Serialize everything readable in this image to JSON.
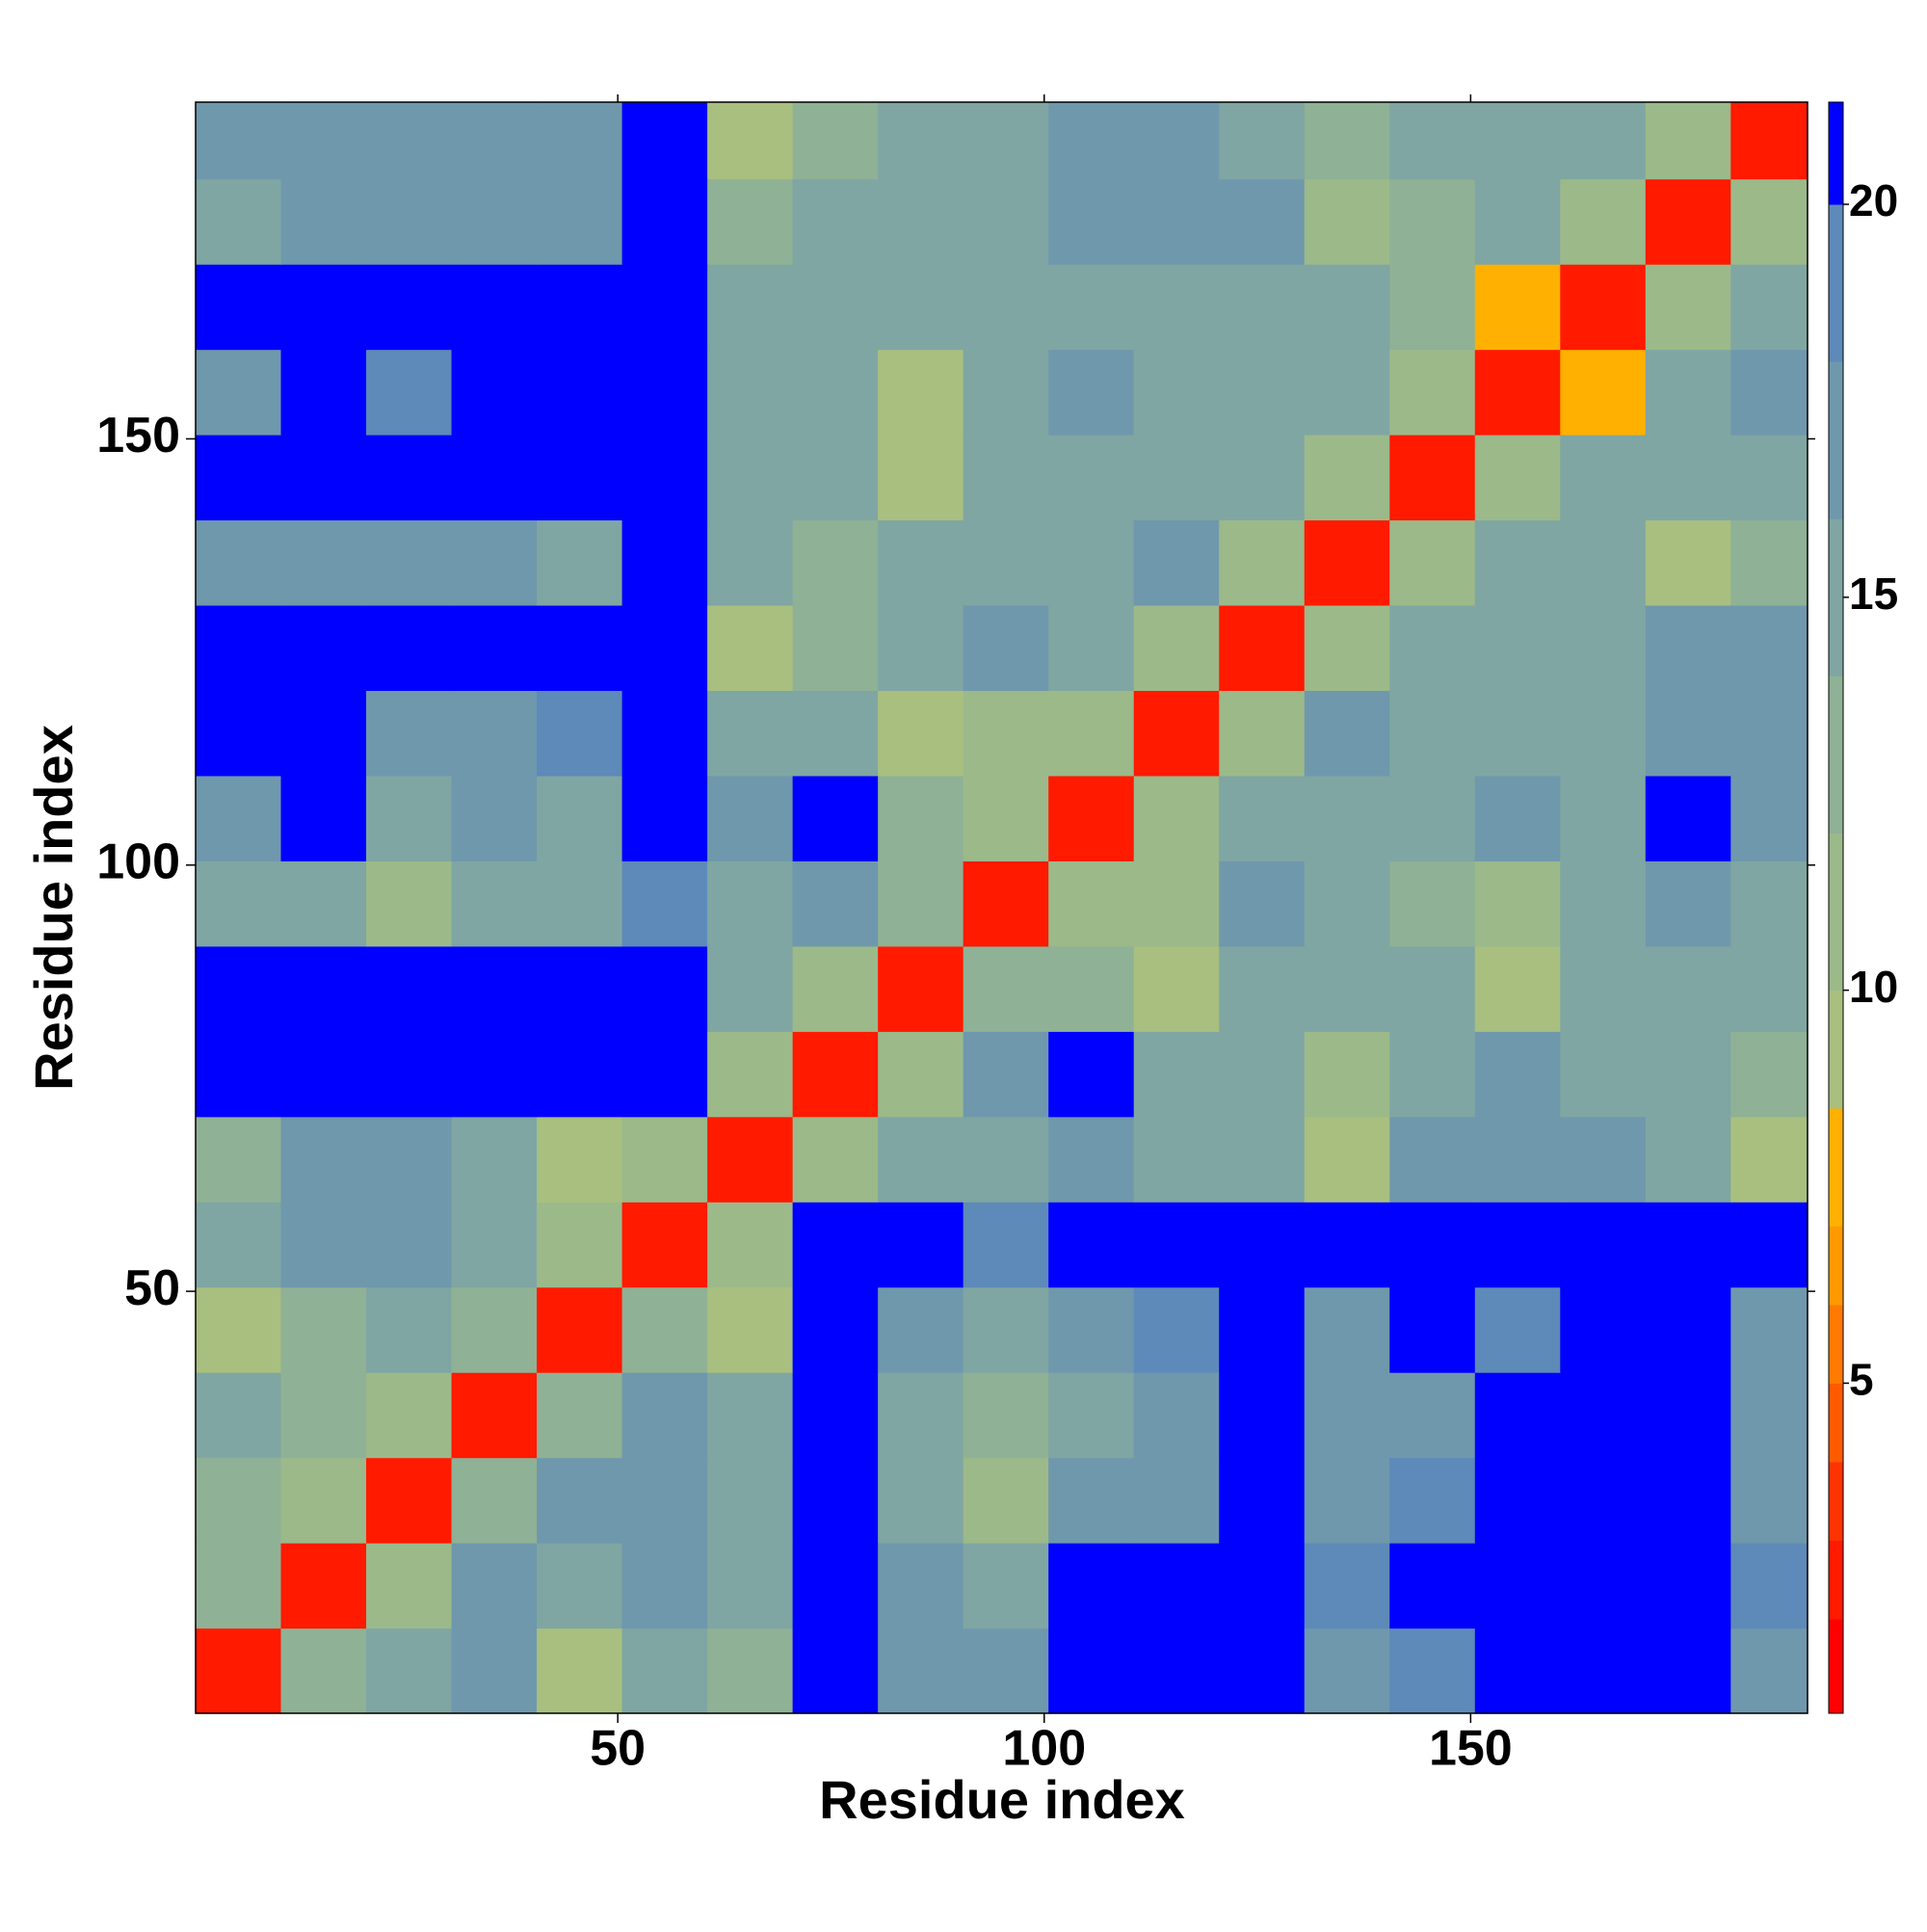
{
  "chart_data": {
    "type": "heatmap",
    "x_label": "Residue index",
    "y_label": "Residue index",
    "xbins": [
      0.5,
      10.5,
      20.5,
      30.5,
      40.5,
      50.5,
      60.5,
      70.5,
      80.5,
      90.5,
      100.5,
      110.5,
      120.5,
      130.5,
      140.5,
      150.5,
      160.5,
      170.5,
      180.5,
      189.5
    ],
    "ybins": [
      0.5,
      10.5,
      20.5,
      30.5,
      40.5,
      50.5,
      60.5,
      70.5,
      80.5,
      90.5,
      100.5,
      110.5,
      120.5,
      130.5,
      140.5,
      150.5,
      160.5,
      170.5,
      180.5,
      189.5
    ],
    "xlim": [
      0.5,
      189.5
    ],
    "ylim": [
      0.5,
      189.5
    ],
    "xticks": [
      50,
      100,
      150
    ],
    "yticks": [
      50,
      100,
      150
    ],
    "values": [
      [
        3,
        13,
        15,
        17,
        9,
        16,
        14,
        21,
        17,
        17,
        21,
        21,
        21,
        18,
        19,
        21,
        21,
        21,
        18
      ],
      [
        13,
        3,
        12,
        17,
        15,
        17,
        15,
        21,
        17,
        16,
        21,
        21,
        21,
        19,
        21,
        21,
        21,
        21,
        19
      ],
      [
        14,
        11,
        3,
        13,
        17,
        18,
        16,
        21,
        16,
        11,
        17,
        18,
        21,
        17,
        19,
        21,
        21,
        21,
        18
      ],
      [
        15,
        14,
        12,
        3,
        13,
        17,
        16,
        21,
        16,
        13,
        15,
        17,
        21,
        17,
        18,
        21,
        21,
        21,
        17
      ],
      [
        9,
        14,
        15,
        13,
        3,
        13,
        10,
        21,
        17,
        15,
        17,
        19,
        21,
        17,
        21,
        20,
        21,
        21,
        17
      ],
      [
        15,
        17,
        17,
        15,
        12,
        3,
        12,
        21,
        21,
        19,
        21,
        21,
        21,
        21,
        21,
        21,
        21,
        21,
        21
      ],
      [
        13,
        17,
        17,
        16,
        10,
        12,
        3,
        12,
        16,
        15,
        17,
        16,
        15,
        10,
        17,
        17,
        17,
        15,
        10
      ],
      [
        21,
        21,
        21,
        21,
        21,
        21,
        12,
        3,
        12,
        17,
        21,
        16,
        15,
        11,
        16,
        17,
        15,
        16,
        13
      ],
      [
        21,
        21,
        21,
        21,
        21,
        21,
        16,
        12,
        3,
        14,
        14,
        9,
        16,
        16,
        15,
        10,
        15,
        16,
        16
      ],
      [
        15,
        16,
        11,
        16,
        15,
        19,
        15,
        17,
        14,
        3,
        11,
        11,
        17,
        16,
        14,
        11,
        15,
        17,
        16
      ],
      [
        17,
        21,
        15,
        18,
        16,
        21,
        17,
        21,
        14,
        11,
        3,
        12,
        16,
        16,
        16,
        17,
        16,
        21,
        17
      ],
      [
        21,
        21,
        17,
        17,
        19,
        21,
        16,
        16,
        9,
        11,
        12,
        3,
        12,
        17,
        16,
        16,
        16,
        17,
        17
      ],
      [
        21,
        21,
        21,
        21,
        21,
        21,
        10,
        14,
        16,
        17,
        16,
        12,
        3,
        12,
        16,
        16,
        15,
        17,
        17
      ],
      [
        17,
        17,
        17,
        17,
        16,
        21,
        15,
        13,
        15,
        15,
        16,
        17,
        12,
        3,
        12,
        16,
        16,
        9,
        14
      ],
      [
        21,
        21,
        21,
        21,
        21,
        21,
        16,
        16,
        10,
        15,
        16,
        16,
        16,
        12,
        3,
        11,
        15,
        15,
        16
      ],
      [
        18,
        21,
        20,
        21,
        21,
        21,
        16,
        15,
        10,
        16,
        17,
        16,
        16,
        15,
        11,
        3,
        8,
        16,
        17
      ],
      [
        21,
        21,
        21,
        21,
        21,
        21,
        16,
        15,
        15,
        16,
        16,
        16,
        15,
        16,
        14,
        8,
        3,
        12,
        16
      ],
      [
        16,
        18,
        17,
        17,
        18,
        21,
        13,
        15,
        16,
        16,
        17,
        18,
        17,
        12,
        14,
        15,
        12,
        3,
        12
      ],
      [
        17,
        18,
        17,
        17,
        17,
        21,
        10,
        13,
        16,
        16,
        17,
        17,
        16,
        14,
        15,
        16,
        16,
        12,
        3
      ]
    ],
    "colorbar": {
      "levels": [
        0.8,
        2,
        3,
        4,
        5,
        6,
        7,
        8.5,
        10,
        12,
        14,
        16,
        18,
        20,
        21.3
      ],
      "colors": [
        "#ff0000",
        "#ff1a00",
        "#ff3300",
        "#ff5a00",
        "#ff7a00",
        "#ff9900",
        "#ffb000",
        "#a8bf80",
        "#9cb98a",
        "#8fb195",
        "#7fa6a2",
        "#6f98ad",
        "#5d8ab8",
        "#0000ff"
      ],
      "ticks": [
        5,
        10,
        15,
        20
      ]
    }
  }
}
